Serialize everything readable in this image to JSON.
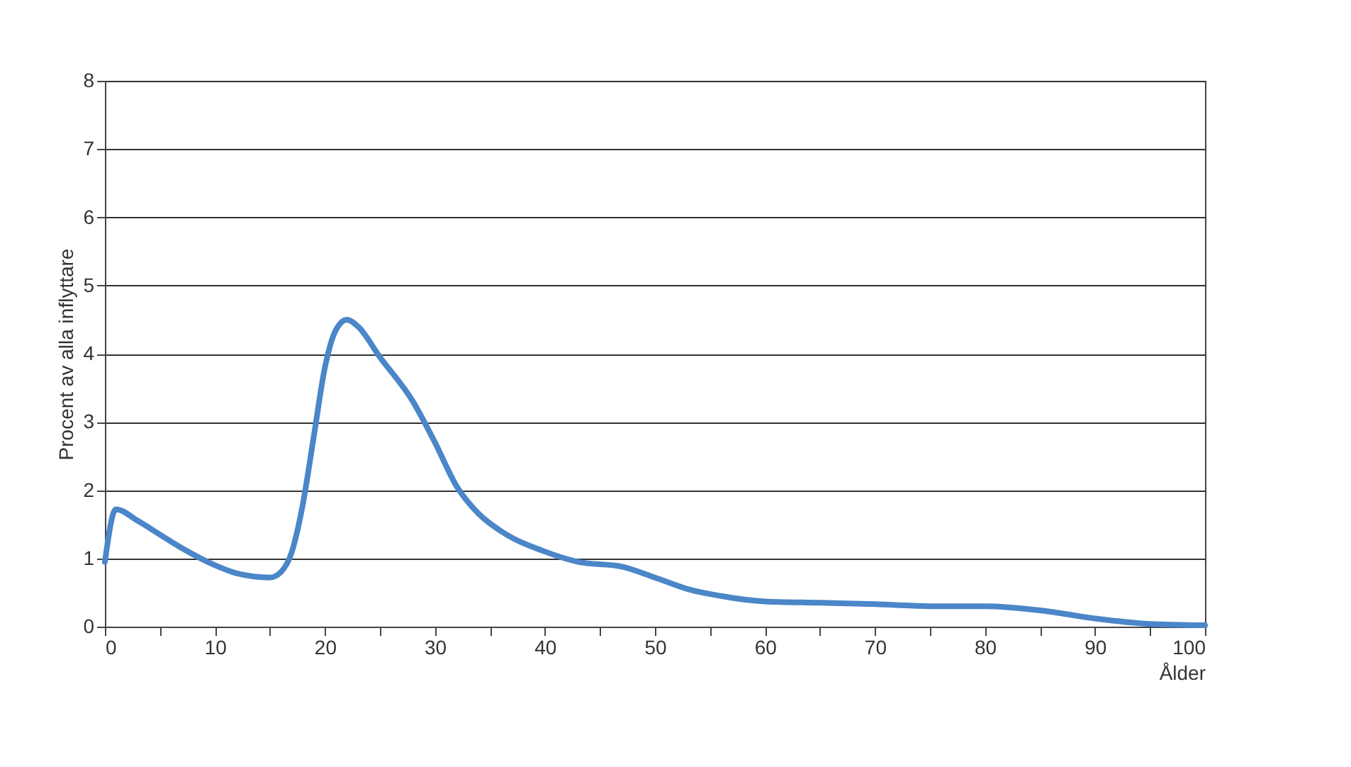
{
  "chart_data": {
    "type": "line",
    "ylabel": "Procent av alla inflyttare",
    "xlabel": "Ålder",
    "x": [
      0,
      1,
      3,
      5,
      7,
      10,
      12,
      15,
      16,
      17,
      18,
      19,
      20,
      21,
      22,
      23,
      25,
      28,
      30,
      32,
      34,
      36,
      40,
      43,
      47,
      50,
      53,
      56,
      60,
      65,
      70,
      75,
      80,
      85,
      90,
      95,
      100
    ],
    "series": [
      {
        "color": "#4a86c8",
        "values": [
          0.95,
          1.72,
          1.55,
          1.35,
          1.15,
          0.9,
          0.78,
          0.72,
          0.8,
          1.1,
          1.8,
          2.8,
          3.8,
          4.35,
          4.5,
          4.4,
          3.95,
          3.3,
          2.7,
          2.05,
          1.65,
          1.4,
          1.1,
          0.95,
          0.88,
          0.72,
          0.55,
          0.45,
          0.37,
          0.35,
          0.33,
          0.3,
          0.3,
          0.24,
          0.12,
          0.04,
          0.02
        ]
      }
    ],
    "xlim": [
      0,
      100
    ],
    "xticks": [
      0,
      {
        "value": 5,
        "label": null
      },
      10,
      {
        "value": 15,
        "label": null
      },
      20,
      {
        "value": 25,
        "label": null
      },
      30,
      {
        "value": 35,
        "label": null
      },
      40,
      {
        "value": 45,
        "label": null
      },
      50,
      {
        "value": 55,
        "label": null
      },
      60,
      {
        "value": 65,
        "label": null
      },
      70,
      {
        "value": 75,
        "label": null
      },
      80,
      {
        "value": 85,
        "label": null
      },
      90,
      {
        "value": 95,
        "label": null
      },
      100
    ],
    "ylim": [
      0,
      8
    ],
    "yticks": [
      0,
      1,
      2,
      3,
      4,
      5,
      6,
      7,
      8
    ],
    "grid": "y",
    "marker": "none",
    "line_style": "solid"
  }
}
